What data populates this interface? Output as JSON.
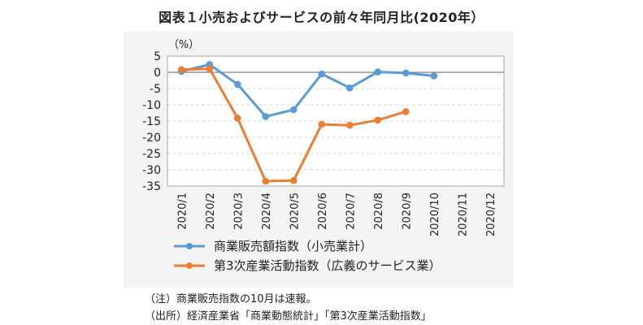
{
  "title": "図表１小売およびサービスの前々年同月比(2020年）",
  "notes": [
    "（注）商業販売指数の10月は速報。",
    "（出所）経済産業省「商業動態統計」「第3次産業活動指数」"
  ],
  "colors": {
    "series_blue": "#5b9bd5",
    "series_orange": "#ed7d31",
    "gridline": "#d9d9d9",
    "axis": "#7f7f7f",
    "panel_background": "#f4f4f4"
  },
  "chart_data": {
    "type": "line",
    "title": "図表１小売およびサービスの前々年同月比(2020年）",
    "unit_label": "（%）",
    "xlabel": "",
    "ylabel": "",
    "ylim": [
      -35,
      5
    ],
    "yticks": [
      5,
      0,
      -5,
      -10,
      -15,
      -20,
      -25,
      -30,
      -35
    ],
    "grid": true,
    "legend_position": "bottom",
    "categories": [
      "2020/1",
      "2020/2",
      "2020/3",
      "2020/4",
      "2020/5",
      "2020/6",
      "2020/7",
      "2020/8",
      "2020/9",
      "2020/10",
      "2020/11",
      "2020/12"
    ],
    "series": [
      {
        "name": "商業販売額指数（小売業計）",
        "color": "#5b9bd5",
        "values": [
          0.3,
          2.4,
          -3.7,
          -13.6,
          -11.5,
          -0.5,
          -4.8,
          0.1,
          -0.2,
          -1.1,
          null,
          null
        ]
      },
      {
        "name": "第3次産業活動指数（広義のサービス業）",
        "color": "#ed7d31",
        "values": [
          0.8,
          1.1,
          -14.1,
          -33.5,
          -33.3,
          -16.0,
          -16.3,
          -14.7,
          -12.1,
          null,
          null,
          null
        ]
      }
    ]
  }
}
